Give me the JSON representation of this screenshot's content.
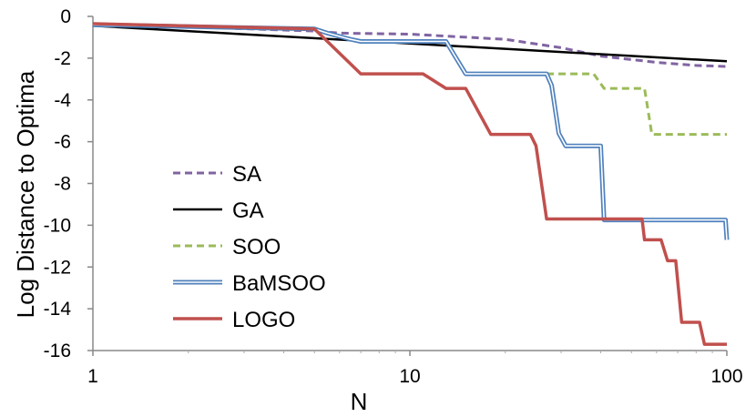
{
  "chart_data": {
    "type": "line",
    "title": "",
    "xlabel": "N",
    "ylabel": "Log Distance to Optima",
    "xscale": "log",
    "xlim": [
      1,
      100
    ],
    "ylim": [
      -16,
      0
    ],
    "x_ticks": [
      1,
      10,
      100
    ],
    "y_ticks": [
      0,
      -2,
      -4,
      -6,
      -8,
      -10,
      -12,
      -14,
      -16
    ],
    "grid": false,
    "legend_position": "left-center",
    "series": [
      {
        "name": "SA",
        "color": "#8064a2",
        "style": "dashed",
        "points": [
          [
            1,
            -0.35
          ],
          [
            5,
            -0.7
          ],
          [
            6,
            -0.8
          ],
          [
            10,
            -0.85
          ],
          [
            20,
            -1.1
          ],
          [
            30,
            -1.5
          ],
          [
            40,
            -1.9
          ],
          [
            60,
            -2.2
          ],
          [
            80,
            -2.35
          ],
          [
            100,
            -2.4
          ]
        ]
      },
      {
        "name": "GA",
        "color": "#000000",
        "style": "solid",
        "points": [
          [
            1,
            -0.45
          ],
          [
            10,
            -1.3
          ],
          [
            100,
            -2.15
          ]
        ]
      },
      {
        "name": "SOO",
        "color": "#9bbb59",
        "style": "dashed",
        "points": [
          [
            1,
            -0.4
          ],
          [
            5,
            -0.6
          ],
          [
            5.5,
            -0.8
          ],
          [
            6.5,
            -1.1
          ],
          [
            7,
            -1.2
          ],
          [
            13,
            -1.2
          ],
          [
            15,
            -2.75
          ],
          [
            38,
            -2.75
          ],
          [
            41,
            -3.45
          ],
          [
            55,
            -3.45
          ],
          [
            58,
            -5.65
          ],
          [
            100,
            -5.65
          ]
        ]
      },
      {
        "name": "BaMSOO",
        "color": "#4f81bd",
        "style": "double",
        "points": [
          [
            1,
            -0.4
          ],
          [
            5,
            -0.6
          ],
          [
            5.5,
            -0.8
          ],
          [
            6.5,
            -1.1
          ],
          [
            7,
            -1.2
          ],
          [
            13,
            -1.2
          ],
          [
            15,
            -2.75
          ],
          [
            27,
            -2.75
          ],
          [
            28,
            -3.3
          ],
          [
            29.5,
            -5.6
          ],
          [
            31,
            -6.2
          ],
          [
            40,
            -6.2
          ],
          [
            41,
            -9.75
          ],
          [
            99,
            -9.75
          ],
          [
            100,
            -10.7
          ]
        ]
      },
      {
        "name": "LOGO",
        "color": "#c0504d",
        "style": "solid",
        "points": [
          [
            1,
            -0.35
          ],
          [
            5,
            -0.6
          ],
          [
            7,
            -2.75
          ],
          [
            11,
            -2.75
          ],
          [
            13,
            -3.45
          ],
          [
            15,
            -3.45
          ],
          [
            18,
            -5.65
          ],
          [
            24,
            -5.65
          ],
          [
            25,
            -6.2
          ],
          [
            27,
            -9.7
          ],
          [
            54,
            -9.7
          ],
          [
            55,
            -10.7
          ],
          [
            62,
            -10.7
          ],
          [
            65,
            -11.7
          ],
          [
            69,
            -11.7
          ],
          [
            72,
            -14.65
          ],
          [
            82,
            -14.65
          ],
          [
            85,
            -15.7
          ],
          [
            100,
            -15.7
          ]
        ]
      }
    ]
  }
}
